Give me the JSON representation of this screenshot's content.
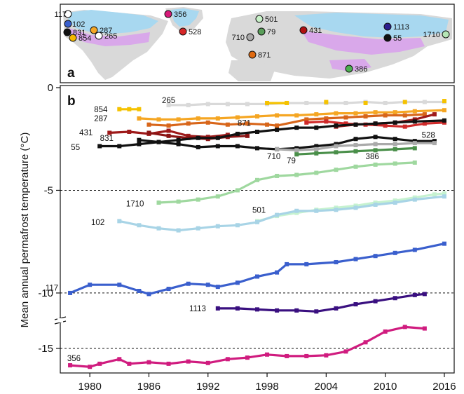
{
  "map_panel": {
    "letter": "a",
    "sites": [
      {
        "id": "117",
        "label": "117",
        "color": "#ffffff"
      },
      {
        "id": "102",
        "label": "102",
        "color": "#3a5fcd"
      },
      {
        "id": "831",
        "label": "831",
        "color": "#111111"
      },
      {
        "id": "854",
        "label": "854",
        "color": "#f5b800"
      },
      {
        "id": "287",
        "label": "287",
        "color": "#f5a623"
      },
      {
        "id": "265",
        "label": "265",
        "color": "#ffffff"
      },
      {
        "id": "356",
        "label": "356",
        "color": "#d81b7a"
      },
      {
        "id": "528",
        "label": "528",
        "color": "#d62728"
      },
      {
        "id": "501",
        "label": "501",
        "color": "#c8f0c8"
      },
      {
        "id": "710",
        "label": "710",
        "color": "#aaaaaa"
      },
      {
        "id": "79",
        "label": "79",
        "color": "#5a9e5a"
      },
      {
        "id": "431",
        "label": "431",
        "color": "#b01010"
      },
      {
        "id": "871",
        "label": "871",
        "color": "#e06a10"
      },
      {
        "id": "386",
        "label": "386",
        "color": "#4caf50"
      },
      {
        "id": "1113",
        "label": "1113",
        "color": "#2c1f8f"
      },
      {
        "id": "55",
        "label": "55",
        "color": "#111111"
      },
      {
        "id": "1710",
        "label": "1710",
        "color": "#b5e6b5"
      }
    ]
  },
  "chart_data": {
    "type": "line",
    "panel_letter": "b",
    "title": "",
    "xlabel": "",
    "ylabel": "Mean annual permafrost temperature (°C)",
    "xlim": [
      1977,
      2017
    ],
    "xticks": [
      1980,
      1986,
      1992,
      1998,
      2004,
      2010,
      2016
    ],
    "yticks": [
      0,
      -5,
      -10,
      -15
    ],
    "axis_break": "between -11.5 and -13.5",
    "reference_lines": [
      -5,
      -10,
      -15
    ],
    "series": [
      {
        "name": "265",
        "color": "#d9d9d9",
        "x": [
          1988,
          1990,
          1992,
          1994,
          1996,
          1998,
          2000,
          2002,
          2004,
          2006,
          2008,
          2010,
          2012,
          2014,
          2016
        ],
        "y": [
          -0.85,
          -0.85,
          -0.8,
          -0.8,
          -0.8,
          -0.8,
          -0.75,
          -0.75,
          -0.75,
          -0.75,
          -0.7,
          -0.75,
          -0.7,
          -0.7,
          -0.7
        ]
      },
      {
        "name": "854",
        "color": "#f5c200",
        "x": [
          1983,
          1984,
          1985,
          1998,
          2000,
          2004,
          2008,
          2012,
          2016
        ],
        "y": [
          -1.05,
          -1.05,
          -1.05,
          -0.75,
          -0.75,
          -0.7,
          -0.75,
          -0.7,
          -0.65
        ]
      },
      {
        "name": "287",
        "color": "#f5a623",
        "x": [
          1985,
          1987,
          1989,
          1991,
          1993,
          1995,
          1997,
          1999,
          2001,
          2003,
          2005,
          2007,
          2009,
          2011,
          2013,
          2016
        ],
        "y": [
          -1.5,
          -1.55,
          -1.55,
          -1.5,
          -1.5,
          -1.45,
          -1.4,
          -1.35,
          -1.35,
          -1.3,
          -1.25,
          -1.25,
          -1.2,
          -1.2,
          -1.15,
          -1.1
        ]
      },
      {
        "name": "871",
        "color": "#d8661a",
        "x": [
          1986,
          1988,
          1990,
          1992,
          1994,
          1996,
          1998,
          1999,
          2002,
          2004,
          2006,
          2008,
          2010,
          2012,
          2014
        ],
        "y": [
          -1.8,
          -1.85,
          -1.75,
          -1.7,
          -1.8,
          -1.75,
          -1.8,
          -1.85,
          -1.55,
          -1.5,
          -1.45,
          -1.4,
          -1.35,
          -1.35,
          -1.3
        ]
      },
      {
        "name": "431",
        "color": "#9e1a1a",
        "x": [
          1982,
          1984,
          1986,
          1988,
          1990,
          1992,
          1994,
          2005,
          2007,
          2009,
          2011,
          2013,
          2015
        ],
        "y": [
          -2.2,
          -2.15,
          -2.25,
          -2.1,
          -2.35,
          -2.4,
          -2.3,
          -1.9,
          -1.8,
          -1.75,
          -1.7,
          -1.55,
          -1.3
        ]
      },
      {
        "name": "831",
        "color": "#8b1414",
        "x": [
          1986,
          1988,
          1990,
          1992,
          1994,
          1996
        ],
        "y": [
          -2.2,
          -2.35,
          -2.45,
          -2.5,
          -2.4,
          -2.35
        ]
      },
      {
        "name": "528",
        "color": "#cf2a2a",
        "x": [
          2002,
          2004,
          2006,
          2008,
          2010,
          2012,
          2014,
          2016
        ],
        "y": [
          -1.7,
          -1.65,
          -1.75,
          -1.8,
          -1.85,
          -1.9,
          -1.75,
          -1.7
        ]
      },
      {
        "name": "55",
        "color": "#111111",
        "x": [
          1981,
          1983,
          1985,
          1987,
          1989,
          1991,
          1993,
          1995,
          1997,
          1999,
          2001,
          2003,
          2005,
          2007,
          2009,
          2011,
          2013,
          2016
        ],
        "y": [
          -2.85,
          -2.85,
          -2.75,
          -2.65,
          -2.55,
          -2.45,
          -2.45,
          -2.25,
          -2.15,
          -2.05,
          -1.95,
          -1.95,
          -1.85,
          -1.8,
          -1.75,
          -1.7,
          -1.65,
          -1.6
        ]
      },
      {
        "name": "710",
        "color": "#111111",
        "x": [
          1985,
          1987,
          1989,
          1991,
          1993,
          1995,
          1997,
          1999,
          2001,
          2003,
          2005,
          2007,
          2009,
          2011,
          2013,
          2015
        ],
        "y": [
          -2.55,
          -2.65,
          -2.75,
          -2.9,
          -2.85,
          -2.85,
          -2.95,
          -3.0,
          -2.95,
          -2.85,
          -2.75,
          -2.5,
          -2.4,
          -2.5,
          -2.6,
          -2.6
        ]
      },
      {
        "name": "79",
        "color": "#aaaaaa",
        "x": [
          1999,
          2001,
          2003,
          2005,
          2007,
          2009,
          2011,
          2013,
          2015
        ],
        "y": [
          -3.0,
          -3.05,
          -3.0,
          -2.85,
          -2.8,
          -2.75,
          -2.75,
          -2.7,
          -2.7
        ]
      },
      {
        "name": "386",
        "color": "#4a8f4a",
        "x": [
          2001,
          2003,
          2005,
          2007,
          2009,
          2011,
          2013
        ],
        "y": [
          -3.25,
          -3.2,
          -3.15,
          -3.1,
          -3.05,
          -3.0,
          -2.95
        ]
      },
      {
        "name": "1710",
        "color": "#9fd89f",
        "x": [
          1987,
          1989,
          1991,
          1993,
          1995,
          1997,
          1999,
          2001,
          2003,
          2005,
          2007,
          2009,
          2011,
          2013
        ],
        "y": [
          -5.6,
          -5.55,
          -5.45,
          -5.3,
          -5.0,
          -4.5,
          -4.3,
          -4.25,
          -4.15,
          -4.0,
          -3.85,
          -3.75,
          -3.7,
          -3.65
        ]
      },
      {
        "name": "501",
        "color": "#c6f2d0",
        "x": [
          1997,
          1999,
          2001,
          2003,
          2005,
          2007,
          2009,
          2011,
          2013,
          2015,
          2016
        ],
        "y": [
          -6.5,
          -6.25,
          -6.1,
          -5.95,
          -5.85,
          -5.75,
          -5.6,
          -5.5,
          -5.35,
          -5.2,
          -5.15
        ]
      },
      {
        "name": "102",
        "color": "#a8d4e6",
        "x": [
          1983,
          1985,
          1987,
          1989,
          1991,
          1993,
          1995,
          1997,
          1999,
          2001,
          2003,
          2005,
          2007,
          2009,
          2011,
          2013,
          2016
        ],
        "y": [
          -6.5,
          -6.7,
          -6.85,
          -6.95,
          -6.85,
          -6.75,
          -6.7,
          -6.55,
          -6.2,
          -6.0,
          -6.0,
          -5.95,
          -5.85,
          -5.7,
          -5.6,
          -5.45,
          -5.3
        ]
      },
      {
        "name": "117",
        "color": "#3a5fcd",
        "x": [
          1978,
          1980,
          1983,
          1985,
          1986,
          1988,
          1990,
          1992,
          1993,
          1995,
          1997,
          1999,
          2000,
          2002,
          2005,
          2007,
          2009,
          2011,
          2013,
          2016
        ],
        "y": [
          -10.0,
          -9.6,
          -9.6,
          -9.9,
          -10.05,
          -9.8,
          -9.55,
          -9.6,
          -9.7,
          -9.5,
          -9.2,
          -9.0,
          -8.6,
          -8.6,
          -8.5,
          -8.35,
          -8.2,
          -8.05,
          -7.9,
          -7.6
        ]
      },
      {
        "name": "1113",
        "color": "#3a1080",
        "x": [
          1993,
          1995,
          1997,
          1999,
          2001,
          2003,
          2005,
          2007,
          2009,
          2011,
          2013,
          2014
        ],
        "y": [
          -10.75,
          -10.75,
          -10.8,
          -10.85,
          -10.85,
          -10.9,
          -10.75,
          -10.55,
          -10.4,
          -10.25,
          -10.1,
          -10.05
        ]
      },
      {
        "name": "356",
        "color": "#d01c7f",
        "x": [
          1978,
          1980,
          1981,
          1983,
          1984,
          1986,
          1988,
          1990,
          1992,
          1994,
          1996,
          1998,
          2000,
          2002,
          2004,
          2006,
          2008,
          2010,
          2012,
          2014
        ],
        "y": [
          -16.1,
          -16.2,
          -16.0,
          -15.7,
          -16.0,
          -15.9,
          -16.0,
          -15.85,
          -15.95,
          -15.7,
          -15.6,
          -15.4,
          -15.5,
          -15.5,
          -15.45,
          -15.2,
          -14.6,
          -13.9,
          -13.6,
          -13.7
        ]
      }
    ]
  }
}
